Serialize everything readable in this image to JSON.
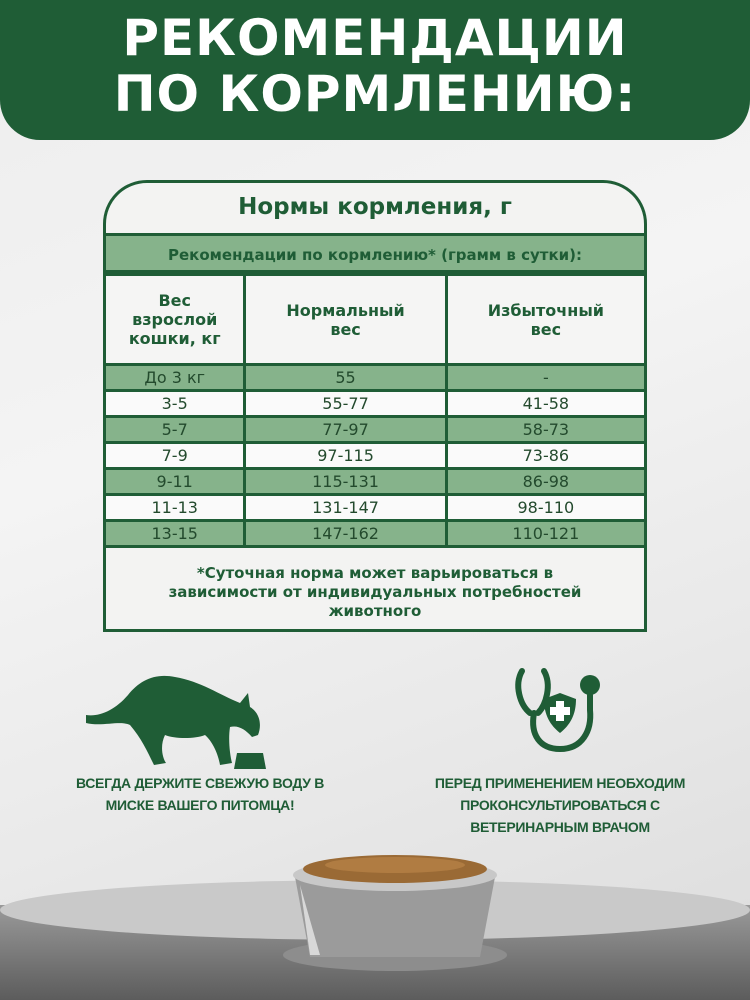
{
  "header": {
    "line1": "РЕКОМЕНДАЦИИ",
    "line2": "ПО КОРМЛЕНИЮ:"
  },
  "table": {
    "title": "Нормы кормления, г",
    "subtitle": "Рекомендации по кормлению* (грамм в сутки):",
    "columns": [
      "Вес взрослой кошки, кг",
      "Нормальный вес",
      "Избыточный вес"
    ],
    "rows": [
      [
        "До 3 кг",
        "55",
        "-"
      ],
      [
        "3-5",
        "55-77",
        "41-58"
      ],
      [
        "5-7",
        "77-97",
        "58-73"
      ],
      [
        "7-9",
        "97-115",
        "73-86"
      ],
      [
        "9-11",
        "115-131",
        "86-98"
      ],
      [
        "11-13",
        "131-147",
        "98-110"
      ],
      [
        "13-15",
        "147-162",
        "110-121"
      ]
    ],
    "footnote": "*Суточная норма может варьироваться в зависимости от индивидуальных потребностей животного"
  },
  "tips": [
    {
      "icon": "cat-eating-icon",
      "text": "ВСЕГДА ДЕРЖИТЕ СВЕЖУЮ ВОДУ В МИСКЕ ВАШЕГО ПИТОМЦА!"
    },
    {
      "icon": "stethoscope-shield-icon",
      "text": "ПЕРЕД ПРИМЕНЕНИЕМ НЕОБХОДИМ ПРОКОНСУЛЬТИРОВАТЬСЯ С ВЕТЕРИНАРНЫМ ВРАЧОМ"
    }
  ],
  "colors": {
    "brand_green": "#1f5d36",
    "row_shade": "#86b38b"
  }
}
